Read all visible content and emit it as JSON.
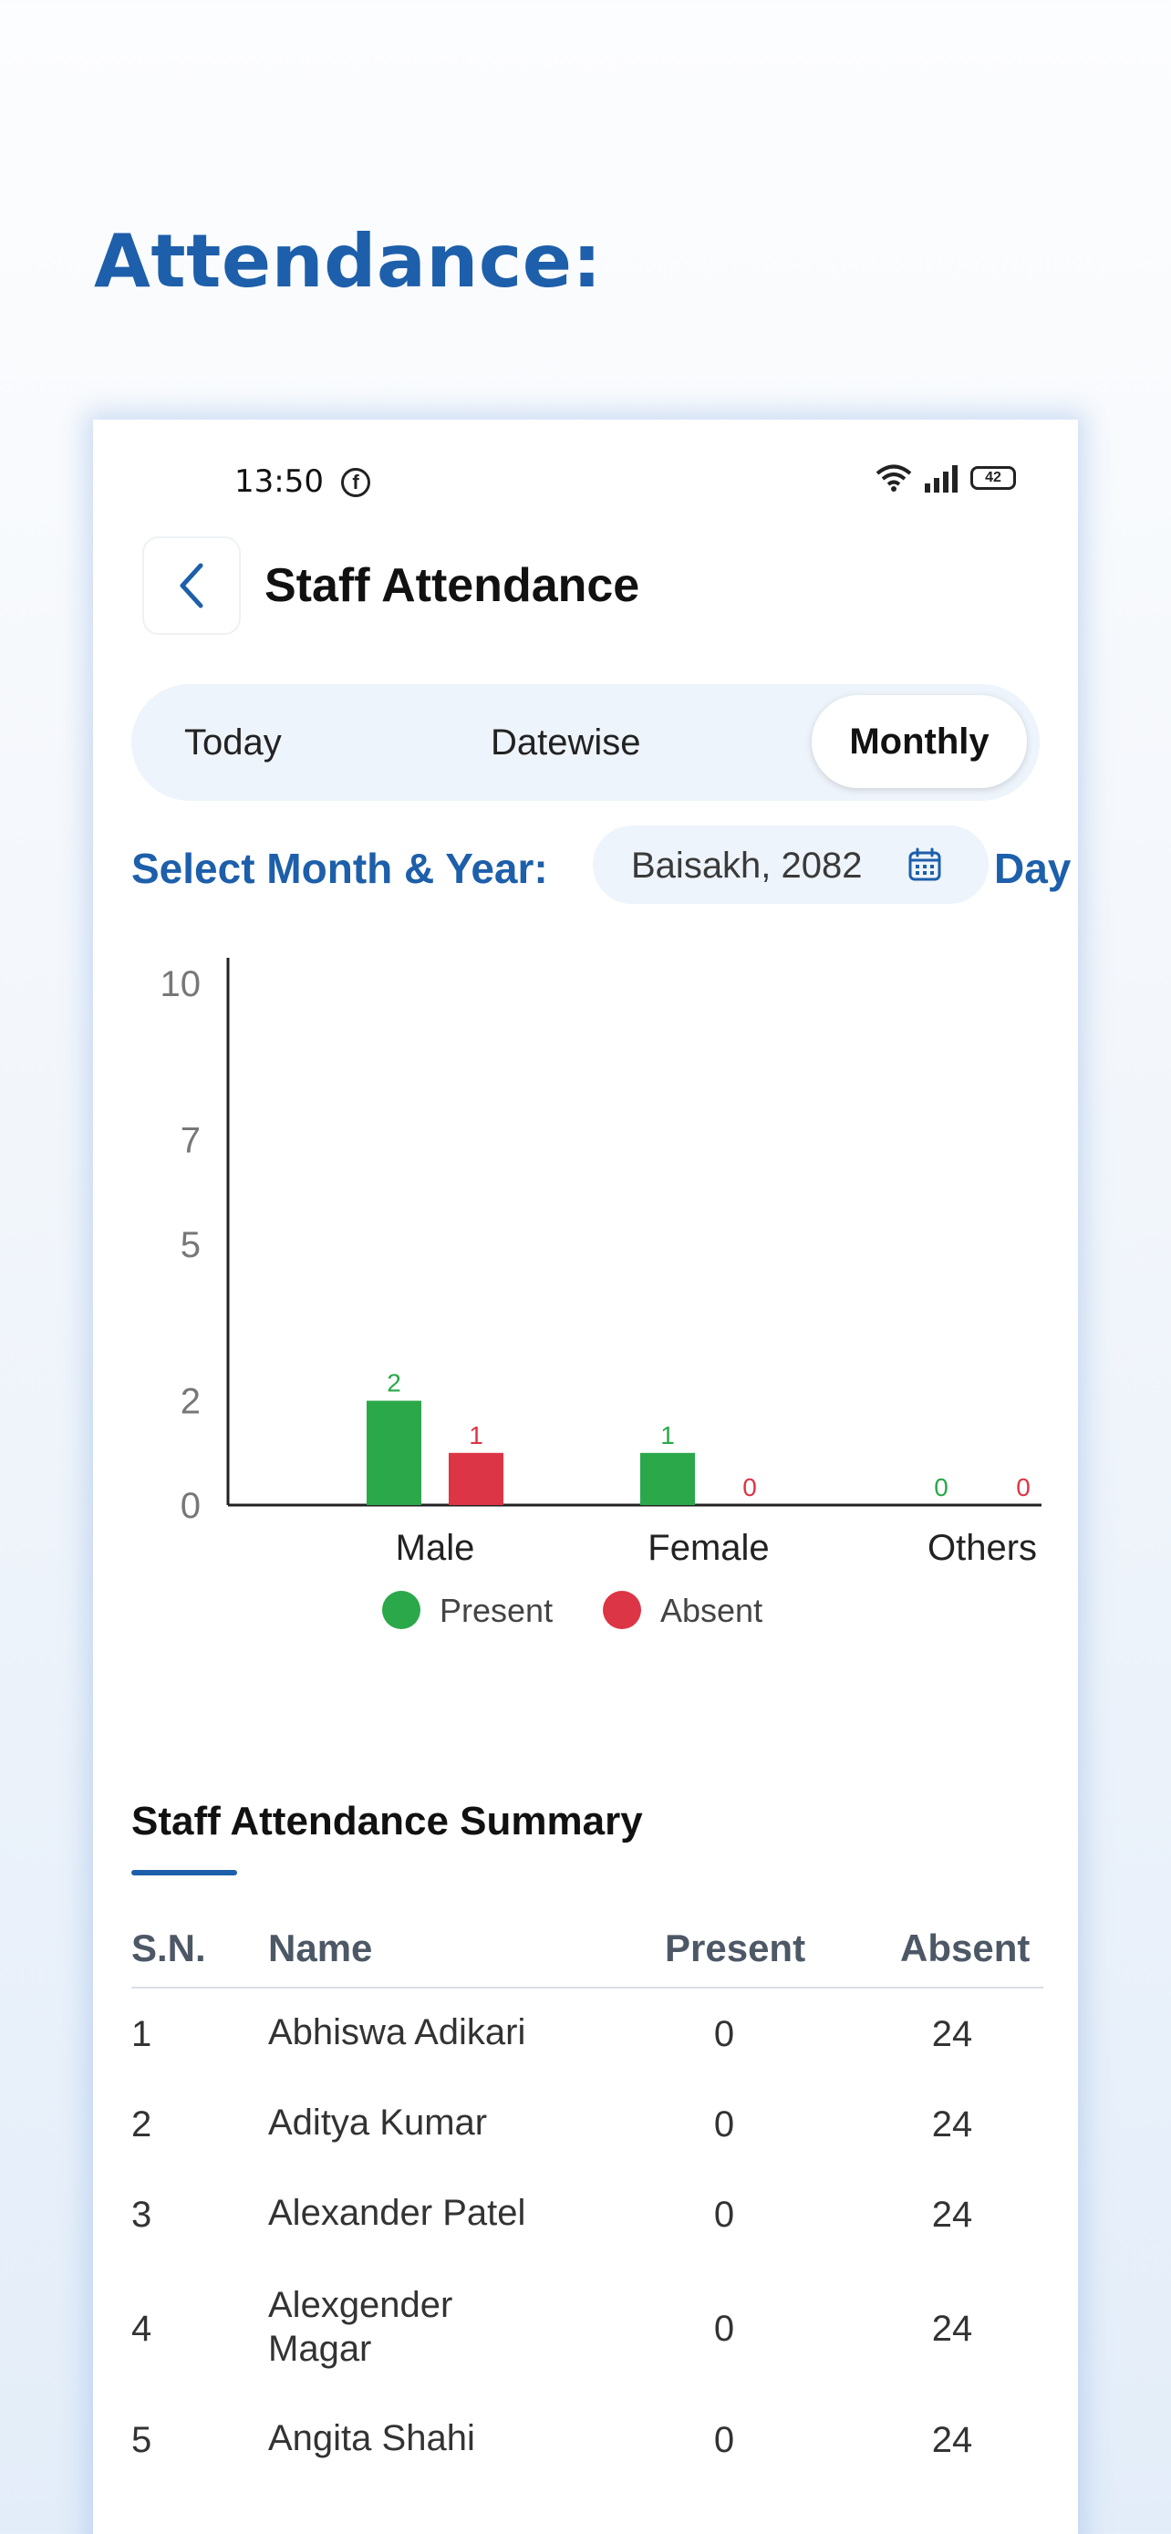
{
  "headline": "Attendance:",
  "status_bar": {
    "time": "13:50",
    "battery": "42",
    "fb_glyph": "f"
  },
  "app_bar": {
    "title": "Staff Attendance"
  },
  "tabs": {
    "today": "Today",
    "datewise": "Datewise",
    "monthly": "Monthly",
    "active": "Monthly"
  },
  "filter": {
    "label": "Select Month & Year:",
    "date_value": "Baisakh, 2082",
    "mode": "Day"
  },
  "chart_data": {
    "type": "bar",
    "categories": [
      "Male",
      "Female",
      "Others"
    ],
    "series": [
      {
        "name": "Present",
        "values": [
          2,
          1,
          0
        ],
        "color": "#2aa84a"
      },
      {
        "name": "Absent",
        "values": [
          1,
          0,
          0
        ],
        "color": "#dc3545"
      }
    ],
    "y_ticks": [
      0,
      2,
      5,
      7,
      10
    ],
    "ylim": [
      0,
      10
    ],
    "title": "",
    "xlabel": "",
    "ylabel": ""
  },
  "summary": {
    "title": "Staff Attendance Summary",
    "columns": {
      "sn": "S.N.",
      "name": "Name",
      "present": "Present",
      "absent": "Absent"
    },
    "rows": [
      {
        "sn": "1",
        "name": "Abhiswa  Adikari",
        "present": "0",
        "absent": "24"
      },
      {
        "sn": "2",
        "name": "Aditya  Kumar",
        "present": "0",
        "absent": "24"
      },
      {
        "sn": "3",
        "name": "Alexander  Patel",
        "present": "0",
        "absent": "24"
      },
      {
        "sn": "4",
        "name": "Alexgender Magar",
        "present": "0",
        "absent": "24"
      },
      {
        "sn": "5",
        "name": "Angita  Shahi",
        "present": "0",
        "absent": "24"
      }
    ]
  },
  "colors": {
    "accent": "#1d5faa",
    "present": "#2aa84a",
    "absent": "#dc3545"
  }
}
